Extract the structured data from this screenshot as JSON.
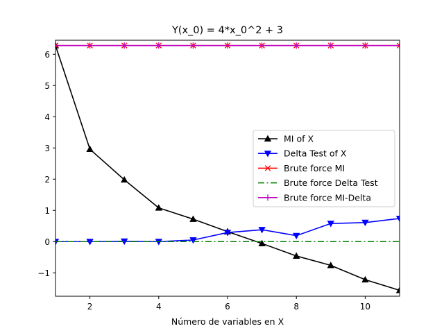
{
  "chart_data": {
    "type": "line",
    "title": "Y(x_0) = 4*x_0^2 + 3",
    "xlabel": "Número de variables en X",
    "ylabel": "",
    "xlim": [
      1,
      11
    ],
    "ylim": [
      -1.75,
      6.45
    ],
    "xticks": [
      2,
      4,
      6,
      8,
      10
    ],
    "yticks": [
      -1,
      0,
      1,
      2,
      3,
      4,
      5,
      6
    ],
    "ytick_labels": [
      "−1",
      "0",
      "1",
      "2",
      "3",
      "4",
      "5",
      "6"
    ],
    "grid": false,
    "legend_position": "center-right",
    "x": [
      1,
      2,
      3,
      4,
      5,
      6,
      7,
      8,
      9,
      10,
      11
    ],
    "series": [
      {
        "name": "MI of X",
        "color": "#000000",
        "marker": "triangle-up",
        "linestyle": "solid",
        "values": [
          6.28,
          2.96,
          1.98,
          1.08,
          0.72,
          0.32,
          -0.06,
          -0.46,
          -0.76,
          -1.22,
          -1.56
        ]
      },
      {
        "name": "Delta Test of X",
        "color": "#0000ff",
        "marker": "triangle-down",
        "linestyle": "solid",
        "values": [
          0.0,
          0.0,
          0.01,
          0.0,
          0.05,
          0.29,
          0.38,
          0.19,
          0.58,
          0.61,
          0.74
        ]
      },
      {
        "name": "Brute force MI",
        "color": "#ff0000",
        "marker": "x",
        "linestyle": "solid",
        "values": [
          6.28,
          6.28,
          6.28,
          6.28,
          6.28,
          6.28,
          6.28,
          6.28,
          6.28,
          6.28,
          6.28
        ]
      },
      {
        "name": "Brute force Delta Test",
        "color": "#008000",
        "marker": "none",
        "linestyle": "dashdot",
        "values": [
          0.0,
          0.0,
          0.0,
          0.0,
          0.0,
          0.0,
          0.0,
          0.0,
          0.0,
          0.0,
          0.0
        ]
      },
      {
        "name": "Brute force MI-Delta",
        "color": "#bf00bf",
        "marker": "plus",
        "linestyle": "solid",
        "values": [
          6.28,
          6.28,
          6.28,
          6.28,
          6.28,
          6.28,
          6.28,
          6.28,
          6.28,
          6.28,
          6.28
        ]
      }
    ]
  }
}
